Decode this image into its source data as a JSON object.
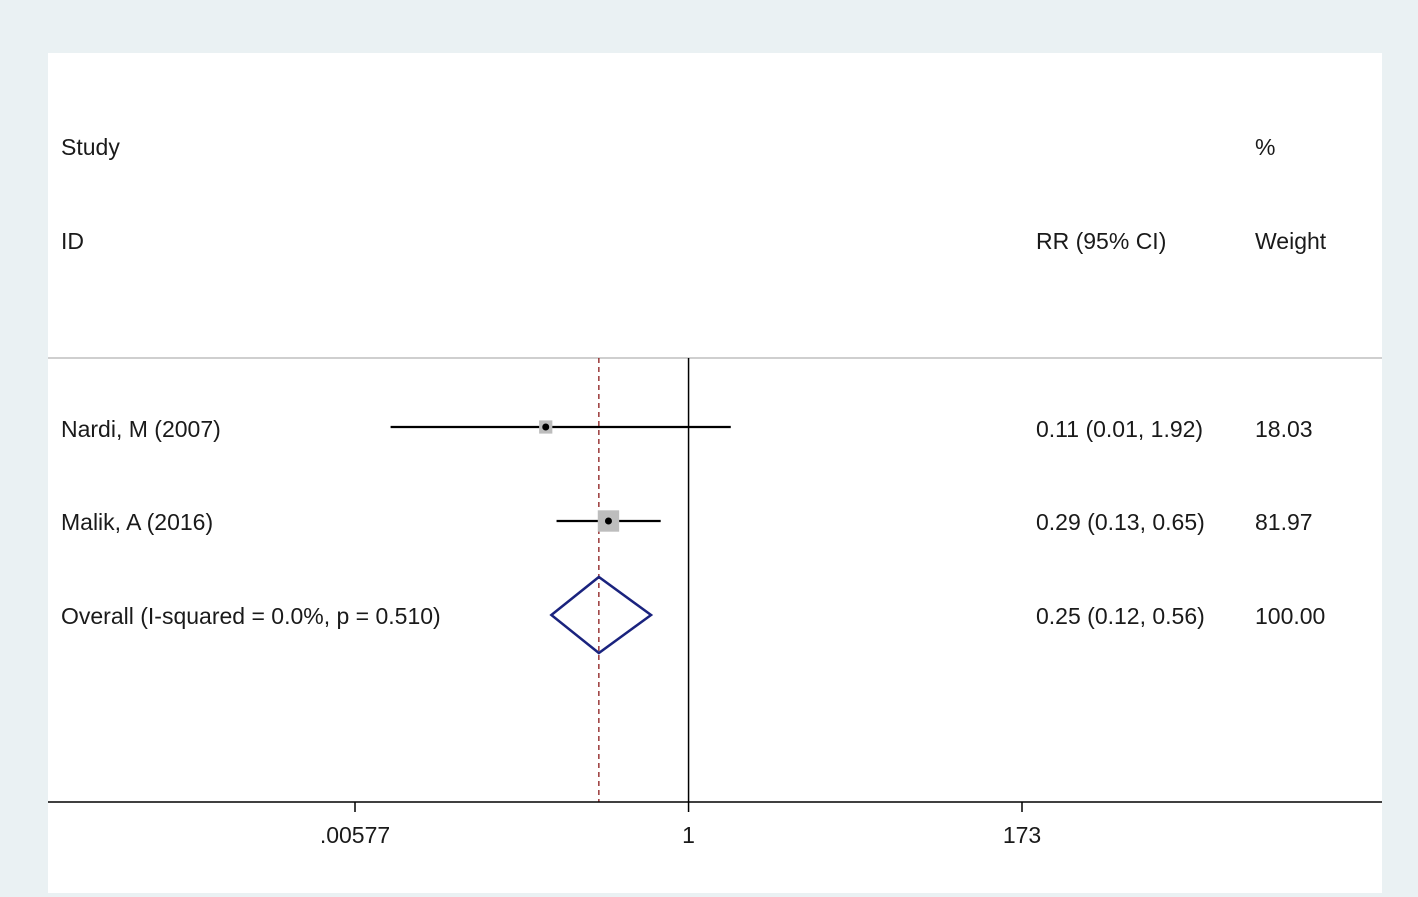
{
  "chart_data": {
    "type": "forest",
    "scale": "log",
    "header": {
      "study_line1": "Study",
      "study_line2": "ID",
      "effect": "RR (95% CI)",
      "weight_line1": "%",
      "weight_line2": "Weight"
    },
    "studies": [
      {
        "label": "Nardi, M (2007)",
        "rr": 0.11,
        "lower": 0.01,
        "upper": 1.92,
        "ci_text": "0.11 (0.01, 1.92)",
        "weight": 18.03,
        "weight_text": "18.03"
      },
      {
        "label": "Malik, A (2016)",
        "rr": 0.29,
        "lower": 0.13,
        "upper": 0.65,
        "ci_text": "0.29 (0.13, 0.65)",
        "weight": 81.97,
        "weight_text": "81.97"
      }
    ],
    "overall": {
      "label": "Overall  (I-squared = 0.0%, p = 0.510)",
      "rr": 0.25,
      "lower": 0.12,
      "upper": 0.56,
      "ci_text": "0.25 (0.12, 0.56)",
      "weight_text": "100.00"
    },
    "x_ticks": [
      {
        "value": 0.00577,
        "label": ".00577"
      },
      {
        "value": 1,
        "label": "1"
      },
      {
        "value": 173,
        "label": "173"
      }
    ],
    "xlim": [
      0.00577,
      173
    ],
    "null_line": 1,
    "colors": {
      "diamond": "#1a237e",
      "overall_line": "#8b1a1a",
      "weight_box": "#bdbdbd",
      "background": "#eaf1f3"
    }
  }
}
